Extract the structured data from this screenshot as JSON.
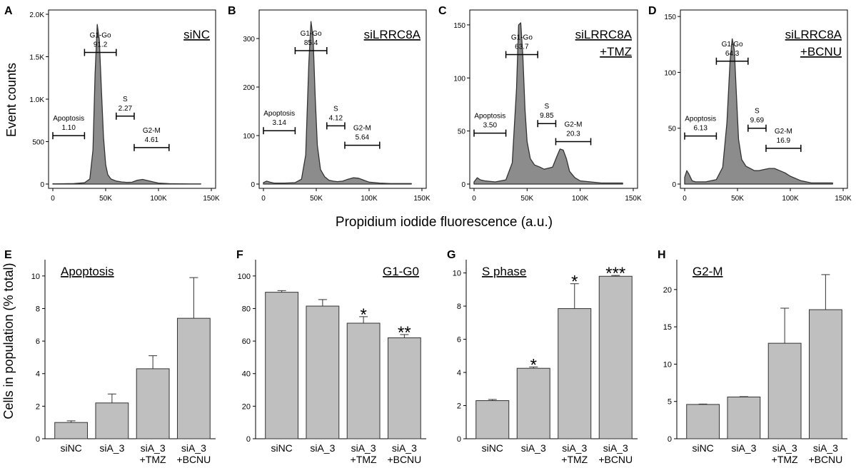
{
  "labels": {
    "y_top": "Event counts",
    "x_top": "Propidium iodide fluorescence (a.u.)",
    "y_bottom": "Cells in population (% total)"
  },
  "chart_data": [
    {
      "panel": "A",
      "type": "area",
      "title": "siNC",
      "xlim": [
        0,
        150000
      ],
      "xticks": [
        0,
        50000,
        100000,
        150000
      ],
      "xticklabels": [
        "0",
        "50K",
        "100K",
        "150K"
      ],
      "ylim": [
        0,
        2000
      ],
      "yticks": [
        0,
        500,
        1000,
        1500,
        2000
      ],
      "yticklabels": [
        "0",
        "500",
        "1.0K",
        "1.5K",
        "2.0K"
      ],
      "x": [
        0,
        5000,
        10000,
        20000,
        30000,
        35000,
        38000,
        40000,
        42000,
        44000,
        46000,
        48000,
        50000,
        52000,
        55000,
        60000,
        65000,
        70000,
        75000,
        80000,
        85000,
        90000,
        95000,
        100000,
        110000,
        120000,
        130000,
        140000
      ],
      "y": [
        3,
        3,
        4,
        6,
        15,
        60,
        400,
        1300,
        1880,
        1700,
        1100,
        550,
        230,
        110,
        60,
        35,
        25,
        20,
        22,
        45,
        55,
        40,
        25,
        12,
        5,
        3,
        2,
        2
      ],
      "gates": [
        {
          "name": "Apoptosis",
          "value": "1.10",
          "x_range": [
            0,
            30000
          ],
          "y": 570
        },
        {
          "name": "G1-Go",
          "value": "91.2",
          "x_range": [
            30000,
            60000
          ],
          "y": 1550
        },
        {
          "name": "S",
          "value": "2.27",
          "x_range": [
            60000,
            77000
          ],
          "y": 800
        },
        {
          "name": "G2-M",
          "value": "4.61",
          "x_range": [
            77000,
            110000
          ],
          "y": 430
        }
      ]
    },
    {
      "panel": "B",
      "type": "area",
      "title": "siLRRC8A",
      "xlim": [
        0,
        150000
      ],
      "xticks": [
        0,
        50000,
        100000,
        150000
      ],
      "xticklabels": [
        "0",
        "50K",
        "100K",
        "150K"
      ],
      "ylim": [
        0,
        350
      ],
      "yticks": [
        0,
        100,
        200,
        300
      ],
      "yticklabels": [
        "0",
        "100",
        "200",
        "300"
      ],
      "x": [
        0,
        3000,
        6000,
        10000,
        20000,
        30000,
        36000,
        40000,
        43000,
        45000,
        47000,
        49000,
        51000,
        54000,
        58000,
        62000,
        66000,
        70000,
        75000,
        80000,
        85000,
        90000,
        95000,
        100000,
        110000,
        120000,
        130000,
        140000
      ],
      "y": [
        3,
        6,
        4,
        2,
        2,
        3,
        10,
        60,
        250,
        335,
        300,
        180,
        80,
        30,
        15,
        8,
        6,
        5,
        6,
        10,
        13,
        12,
        8,
        4,
        2,
        1,
        1,
        1
      ],
      "gates": [
        {
          "name": "Apoptosis",
          "value": "3.14",
          "x_range": [
            0,
            30000
          ],
          "y": 110
        },
        {
          "name": "G1-Go",
          "value": "85.4",
          "x_range": [
            30000,
            60000
          ],
          "y": 275
        },
        {
          "name": "S",
          "value": "4.12",
          "x_range": [
            60000,
            77000
          ],
          "y": 120
        },
        {
          "name": "G2-M",
          "value": "5.64",
          "x_range": [
            77000,
            110000
          ],
          "y": 80
        }
      ]
    },
    {
      "panel": "C",
      "type": "area",
      "title": "siLRRC8A\n+TMZ",
      "xlim": [
        0,
        150000
      ],
      "xticks": [
        0,
        50000,
        100000,
        150000
      ],
      "xticklabels": [
        "0",
        "50K",
        "100K",
        "150K"
      ],
      "ylim": [
        0,
        160
      ],
      "yticks": [
        0,
        50,
        100,
        150
      ],
      "yticklabels": [
        "0",
        "50",
        "100",
        "150"
      ],
      "x": [
        0,
        3000,
        6000,
        10000,
        20000,
        30000,
        36000,
        40000,
        42000,
        44000,
        46000,
        48000,
        50000,
        53000,
        57000,
        62000,
        66000,
        70000,
        74000,
        78000,
        81000,
        84000,
        87000,
        90000,
        95000,
        100000,
        110000,
        120000,
        130000,
        140000
      ],
      "y": [
        2,
        6,
        4,
        3,
        2,
        4,
        20,
        90,
        150,
        152,
        120,
        70,
        40,
        24,
        18,
        16,
        14,
        15,
        16,
        26,
        33,
        32,
        24,
        12,
        6,
        3,
        2,
        1,
        1,
        1
      ],
      "gates": [
        {
          "name": "Apoptosis",
          "value": "3.50",
          "x_range": [
            0,
            30000
          ],
          "y": 48
        },
        {
          "name": "G1-Go",
          "value": "63.7",
          "x_range": [
            30000,
            60000
          ],
          "y": 122
        },
        {
          "name": "S",
          "value": "9.85",
          "x_range": [
            60000,
            77000
          ],
          "y": 57
        },
        {
          "name": "G2-M",
          "value": "20.3",
          "x_range": [
            77000,
            110000
          ],
          "y": 40
        }
      ]
    },
    {
      "panel": "D",
      "type": "area",
      "title": "siLRRC8A\n+BCNU",
      "xlim": [
        0,
        150000
      ],
      "xticks": [
        0,
        50000,
        100000,
        150000
      ],
      "xticklabels": [
        "0",
        "50K",
        "100K",
        "150K"
      ],
      "ylim": [
        0,
        152
      ],
      "yticks": [
        0,
        50,
        100,
        150
      ],
      "yticklabels": [
        "0",
        "50",
        "100",
        "150"
      ],
      "x": [
        0,
        2000,
        4000,
        7000,
        10000,
        20000,
        30000,
        36000,
        40000,
        43000,
        45000,
        47000,
        49000,
        51000,
        54000,
        58000,
        62000,
        66000,
        70000,
        75000,
        80000,
        85000,
        90000,
        95000,
        100000,
        110000,
        120000,
        130000,
        140000
      ],
      "y": [
        6,
        12,
        9,
        3,
        2,
        2,
        4,
        15,
        55,
        110,
        130,
        120,
        80,
        40,
        22,
        16,
        14,
        12,
        12,
        13,
        14,
        14,
        12,
        10,
        7,
        3,
        1,
        1,
        1
      ],
      "gates": [
        {
          "name": "Apoptosis",
          "value": "6.13",
          "x_range": [
            0,
            30000
          ],
          "y": 43
        },
        {
          "name": "G1-Go",
          "value": "64.3",
          "x_range": [
            30000,
            60000
          ],
          "y": 110
        },
        {
          "name": "S",
          "value": "9.69",
          "x_range": [
            60000,
            77000
          ],
          "y": 50
        },
        {
          "name": "G2-M",
          "value": "16.9",
          "x_range": [
            77000,
            110000
          ],
          "y": 32
        }
      ]
    },
    {
      "panel": "E",
      "type": "bar",
      "title": "Apoptosis",
      "title_pos": "left",
      "categories": [
        "siNC",
        "siA_3",
        "siA_3\n+TMZ",
        "siA_3\n+BCNU"
      ],
      "values": [
        1.0,
        2.2,
        4.3,
        7.4
      ],
      "errors": [
        0.1,
        0.55,
        0.8,
        2.5
      ],
      "ylim": [
        0,
        11
      ],
      "yticks": [
        0,
        2,
        4,
        6,
        8,
        10
      ],
      "significance": [
        "",
        "",
        "",
        ""
      ]
    },
    {
      "panel": "F",
      "type": "bar",
      "title": "G1-G0",
      "title_pos": "right",
      "categories": [
        "siNC",
        "siA_3",
        "siA_3\n+TMZ",
        "siA_3\n+BCNU"
      ],
      "values": [
        90,
        81.5,
        71,
        62
      ],
      "errors": [
        1,
        4,
        4,
        2
      ],
      "ylim": [
        0,
        110
      ],
      "yticks": [
        0,
        20,
        40,
        60,
        80,
        100
      ],
      "significance": [
        "",
        "",
        "*",
        "**"
      ]
    },
    {
      "panel": "G",
      "type": "bar",
      "title": "S phase",
      "title_pos": "left",
      "categories": [
        "siNC",
        "siA_3",
        "siA_3\n+TMZ",
        "siA_3\n+BCNU"
      ],
      "values": [
        2.3,
        4.25,
        7.85,
        9.8
      ],
      "errors": [
        0.07,
        0.08,
        1.5,
        0.05
      ],
      "ylim": [
        0,
        10.8
      ],
      "yticks": [
        0,
        2,
        4,
        6,
        8,
        10
      ],
      "significance": [
        "",
        "*",
        "*",
        "***"
      ]
    },
    {
      "panel": "H",
      "type": "bar",
      "title": "G2-M",
      "title_pos": "left",
      "categories": [
        "siNC",
        "siA_3",
        "siA_3\n+TMZ",
        "siA_3\n+BCNU"
      ],
      "values": [
        4.6,
        5.6,
        12.8,
        17.3
      ],
      "errors": [
        0.05,
        0.05,
        4.7,
        4.7
      ],
      "ylim": [
        0,
        24
      ],
      "yticks": [
        0,
        5,
        10,
        15,
        20
      ],
      "significance": [
        "",
        "",
        "",
        ""
      ]
    }
  ]
}
